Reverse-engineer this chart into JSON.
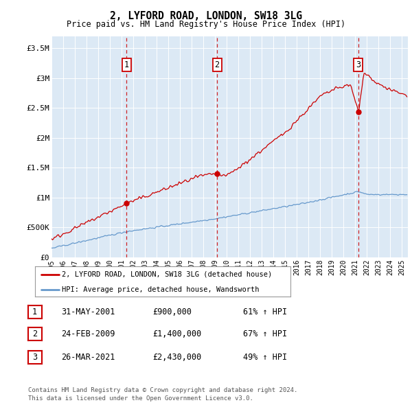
{
  "title": "2, LYFORD ROAD, LONDON, SW18 3LG",
  "subtitle": "Price paid vs. HM Land Registry's House Price Index (HPI)",
  "ylim": [
    0,
    3700000
  ],
  "yticks": [
    0,
    500000,
    1000000,
    1500000,
    2000000,
    2500000,
    3000000,
    3500000
  ],
  "ytick_labels": [
    "£0",
    "£500K",
    "£1M",
    "£1.5M",
    "£2M",
    "£2.5M",
    "£3M",
    "£3.5M"
  ],
  "background_color": "#dce9f5",
  "sale_color": "#cc0000",
  "hpi_color": "#6699cc",
  "transaction_years": [
    2001.4167,
    2009.1667,
    2021.25
  ],
  "transaction_prices": [
    900000,
    1400000,
    2430000
  ],
  "transaction_labels": [
    "1",
    "2",
    "3"
  ],
  "legend_sale": "2, LYFORD ROAD, LONDON, SW18 3LG (detached house)",
  "legend_hpi": "HPI: Average price, detached house, Wandsworth",
  "table_rows": [
    [
      "1",
      "31-MAY-2001",
      "£900,000",
      "61% ↑ HPI"
    ],
    [
      "2",
      "24-FEB-2009",
      "£1,400,000",
      "67% ↑ HPI"
    ],
    [
      "3",
      "26-MAR-2021",
      "£2,430,000",
      "49% ↑ HPI"
    ]
  ],
  "footer": "Contains HM Land Registry data © Crown copyright and database right 2024.\nThis data is licensed under the Open Government Licence v3.0.",
  "xlim_start": 1995.0,
  "xlim_end": 2025.5
}
